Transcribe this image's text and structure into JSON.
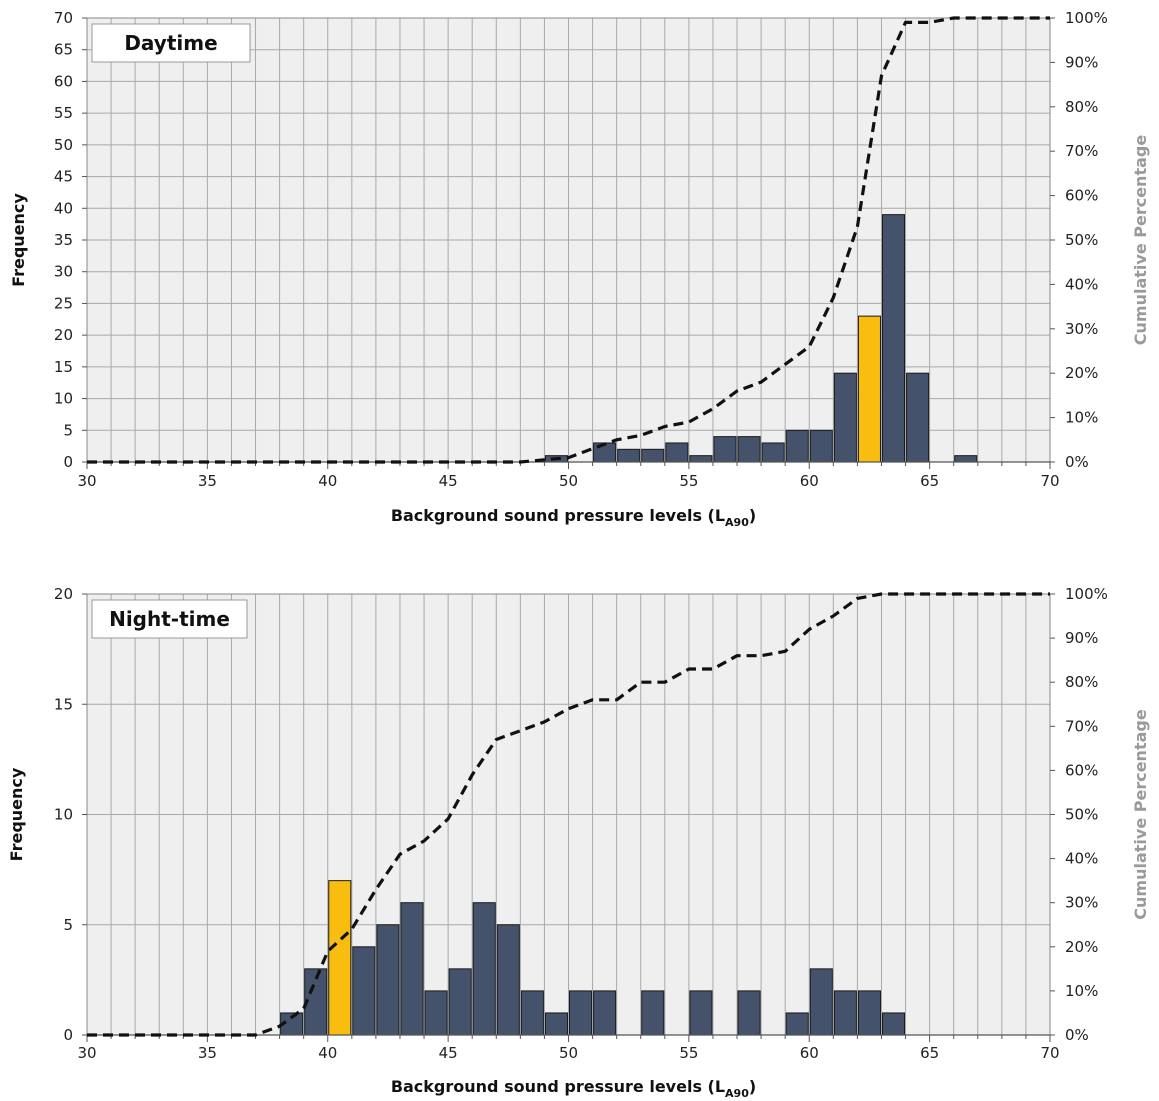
{
  "chart_data": [
    {
      "type": "bar",
      "title": "Daytime",
      "xlabel": "Background sound pressure levels (L",
      "xlabel_sub": "A90",
      "xlabel_tail": ")",
      "ylabel": "Frequency",
      "y2label": "Cumulative Percentage",
      "xlim": [
        30,
        70
      ],
      "ylim": [
        0,
        70
      ],
      "y2lim": [
        0,
        100
      ],
      "xticks": [
        30,
        35,
        40,
        45,
        50,
        55,
        60,
        65,
        70
      ],
      "yticks": [
        0,
        5,
        10,
        15,
        20,
        25,
        30,
        35,
        40,
        45,
        50,
        55,
        60,
        65,
        70
      ],
      "y2ticks": [
        "0%",
        "10%",
        "20%",
        "30%",
        "40%",
        "50%",
        "60%",
        "70%",
        "80%",
        "90%",
        "100%"
      ],
      "bin_width": 1,
      "bins": [
        {
          "x": 49,
          "value": 1
        },
        {
          "x": 51,
          "value": 3
        },
        {
          "x": 52,
          "value": 2
        },
        {
          "x": 53,
          "value": 2
        },
        {
          "x": 54,
          "value": 3
        },
        {
          "x": 55,
          "value": 1
        },
        {
          "x": 56,
          "value": 4
        },
        {
          "x": 57,
          "value": 4
        },
        {
          "x": 58,
          "value": 3
        },
        {
          "x": 59,
          "value": 5
        },
        {
          "x": 60,
          "value": 5
        },
        {
          "x": 61,
          "value": 14
        },
        {
          "x": 62,
          "value": 23,
          "highlight": true
        },
        {
          "x": 63,
          "value": 39
        },
        {
          "x": 64,
          "value": 14
        },
        {
          "x": 66,
          "value": 1
        }
      ],
      "cumulative": {
        "x": [
          30,
          48,
          50,
          51,
          52,
          53,
          54,
          55,
          56,
          57,
          58,
          59,
          60,
          61,
          62,
          63,
          64,
          65,
          66,
          67,
          68,
          69,
          70
        ],
        "y": [
          0,
          0,
          1,
          3,
          5,
          6,
          8,
          9,
          12,
          16,
          18,
          22,
          26,
          37,
          53,
          87,
          99,
          99,
          100,
          100,
          100,
          100,
          100
        ]
      },
      "colors": {
        "bar": "#44526b",
        "highlight": "#f9bd0f",
        "line": "#111111",
        "grid": "#a9a9a9",
        "plot_bg": "#efefef"
      }
    },
    {
      "type": "bar",
      "title": "Night-time",
      "xlabel": "Background sound pressure levels (L",
      "xlabel_sub": "A90",
      "xlabel_tail": ")",
      "ylabel": "Frequency",
      "y2label": "Cumulative Percentage",
      "xlim": [
        30,
        70
      ],
      "ylim": [
        0,
        20
      ],
      "y2lim": [
        0,
        100
      ],
      "xticks": [
        30,
        35,
        40,
        45,
        50,
        55,
        60,
        65,
        70
      ],
      "yticks": [
        0,
        5,
        10,
        15,
        20
      ],
      "y2ticks": [
        "0%",
        "10%",
        "20%",
        "30%",
        "40%",
        "50%",
        "60%",
        "70%",
        "80%",
        "90%",
        "100%"
      ],
      "bin_width": 1,
      "bins": [
        {
          "x": 38,
          "value": 1
        },
        {
          "x": 39,
          "value": 3
        },
        {
          "x": 40,
          "value": 7,
          "highlight": true
        },
        {
          "x": 41,
          "value": 4
        },
        {
          "x": 42,
          "value": 5
        },
        {
          "x": 43,
          "value": 6
        },
        {
          "x": 44,
          "value": 2
        },
        {
          "x": 45,
          "value": 3
        },
        {
          "x": 46,
          "value": 6
        },
        {
          "x": 47,
          "value": 5
        },
        {
          "x": 48,
          "value": 2
        },
        {
          "x": 49,
          "value": 1
        },
        {
          "x": 50,
          "value": 2
        },
        {
          "x": 51,
          "value": 2
        },
        {
          "x": 53,
          "value": 2
        },
        {
          "x": 55,
          "value": 2
        },
        {
          "x": 57,
          "value": 2
        },
        {
          "x": 59,
          "value": 1
        },
        {
          "x": 60,
          "value": 3
        },
        {
          "x": 61,
          "value": 2
        },
        {
          "x": 62,
          "value": 2
        },
        {
          "x": 63,
          "value": 1
        }
      ],
      "cumulative": {
        "x": [
          30,
          37,
          38,
          39,
          40,
          41,
          42,
          43,
          44,
          45,
          46,
          47,
          48,
          49,
          50,
          51,
          52,
          53,
          54,
          55,
          56,
          57,
          58,
          59,
          60,
          61,
          62,
          63,
          64,
          70
        ],
        "y": [
          0,
          0,
          2,
          6,
          19,
          24,
          33,
          41,
          44,
          49,
          59,
          67,
          69,
          71,
          74,
          76,
          76,
          80,
          80,
          83,
          83,
          86,
          86,
          87,
          92,
          95,
          99,
          100,
          100,
          100
        ]
      },
      "colors": {
        "bar": "#44526b",
        "highlight": "#f9bd0f",
        "line": "#111111",
        "grid": "#a9a9a9",
        "plot_bg": "#efefef"
      }
    }
  ]
}
